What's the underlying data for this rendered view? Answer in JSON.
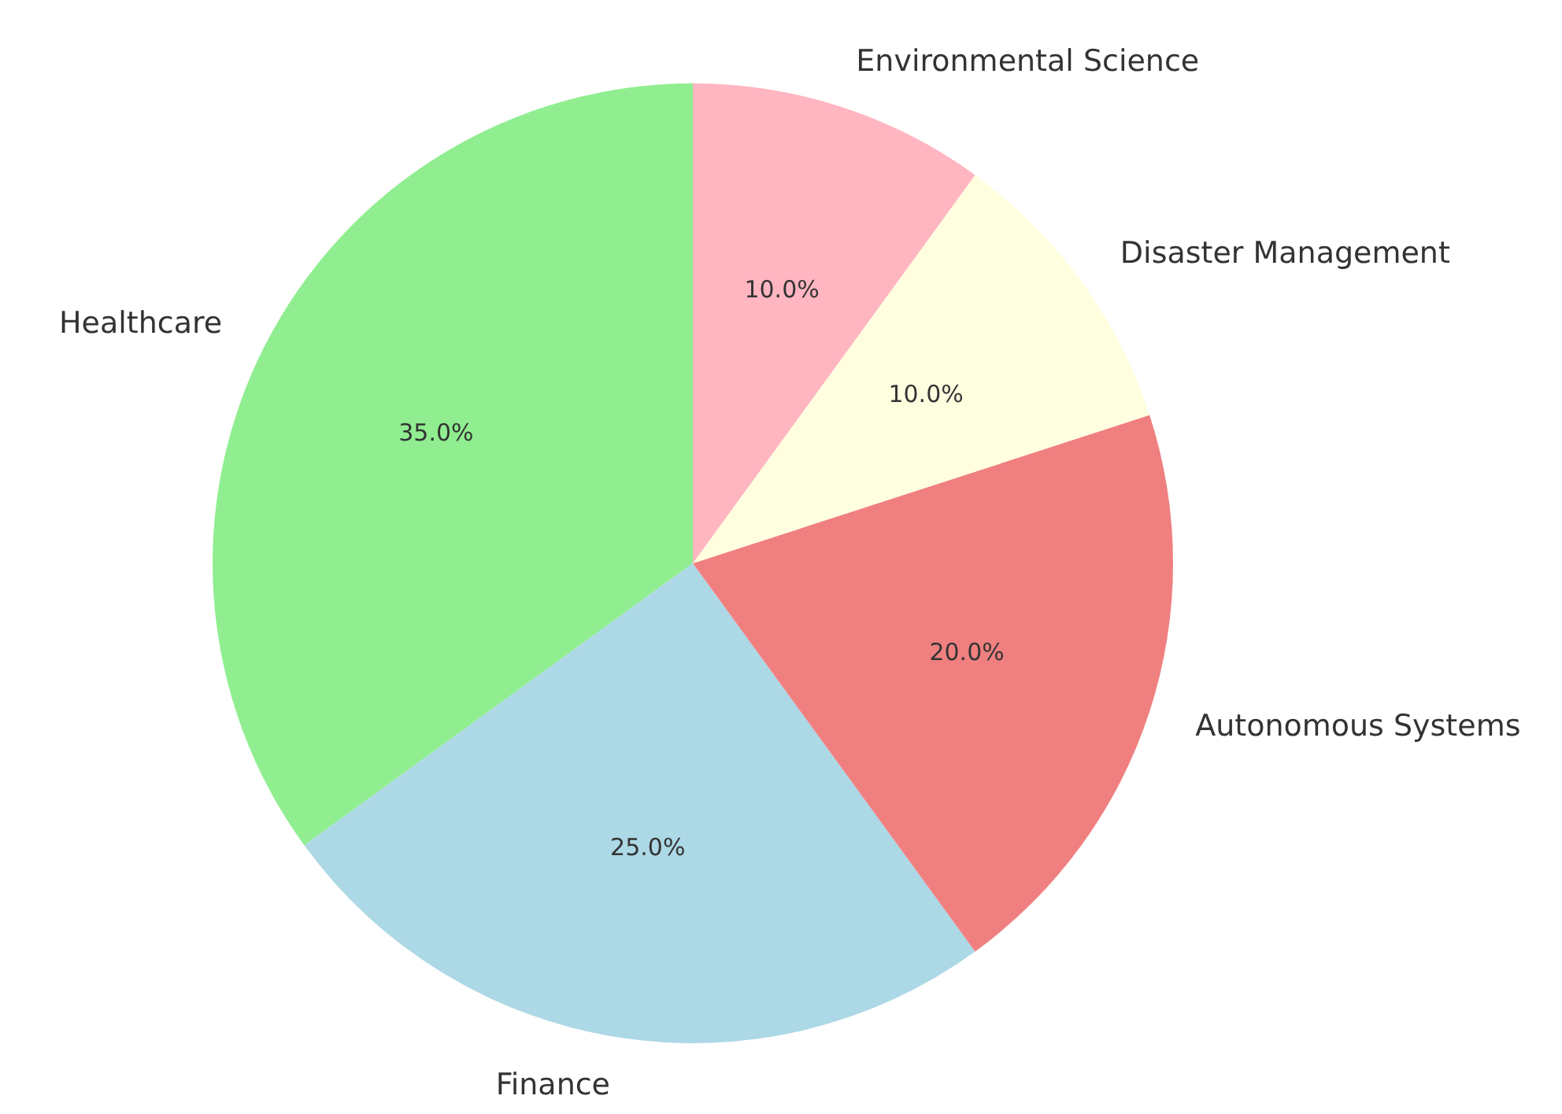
{
  "chart_data": {
    "type": "pie",
    "categories": [
      "Healthcare",
      "Finance",
      "Autonomous Systems",
      "Disaster Management",
      "Environmental Science"
    ],
    "values": [
      35,
      25,
      20,
      10,
      10
    ],
    "colors": [
      "#90ee90",
      "#add8e6",
      "#f08080",
      "#ffffe0",
      "#ffb6c1"
    ],
    "value_labels": [
      "35.0%",
      "25.0%",
      "20.0%",
      "10.0%",
      "10.0%"
    ]
  }
}
